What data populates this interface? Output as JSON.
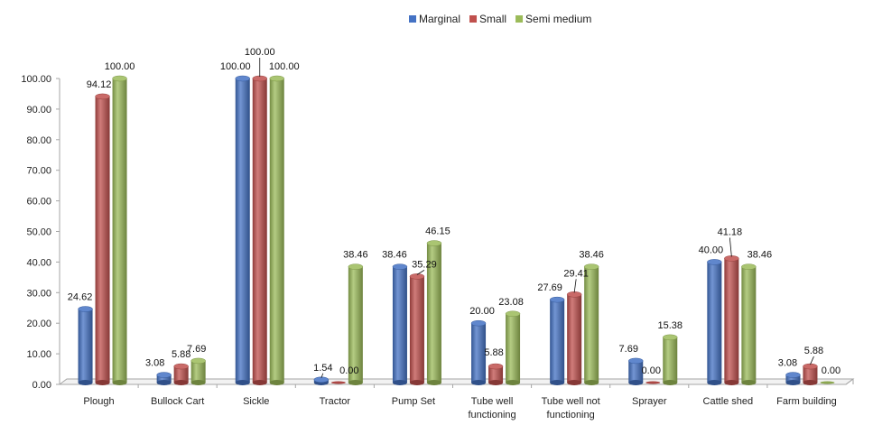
{
  "chart_data": {
    "type": "bar",
    "title": "",
    "xlabel": "",
    "ylabel": "",
    "ylim": [
      0,
      100
    ],
    "yticks": [
      "0.00",
      "10.00",
      "20.00",
      "30.00",
      "40.00",
      "50.00",
      "60.00",
      "70.00",
      "80.00",
      "90.00",
      "100.00"
    ],
    "grid": false,
    "legend_position": "top-center",
    "categories": [
      [
        "Plough"
      ],
      [
        "Bullock Cart"
      ],
      [
        "Sickle"
      ],
      [
        "Tractor"
      ],
      [
        "Pump Set"
      ],
      [
        "Tube well",
        "functioning"
      ],
      [
        "Tube well not",
        "functioning"
      ],
      [
        "Sprayer"
      ],
      [
        "Cattle shed"
      ],
      [
        "Farm building"
      ]
    ],
    "series": [
      {
        "name": "Marginal",
        "color": "#4472C4",
        "values": [
          24.62,
          3.08,
          100.0,
          1.54,
          38.46,
          20.0,
          27.69,
          7.69,
          40.0,
          3.08
        ],
        "labels": [
          "24.62",
          "3.08",
          "100.00",
          "1.54",
          "38.46",
          "20.00",
          "27.69",
          "7.69",
          "40.00",
          "3.08"
        ]
      },
      {
        "name": "Small",
        "color": "#C0504D",
        "values": [
          94.12,
          5.88,
          100.0,
          0.0,
          35.29,
          5.88,
          29.41,
          0.0,
          41.18,
          5.88
        ],
        "labels": [
          "94.12",
          "5.88",
          "100.00",
          "0.00",
          "35.29",
          "5.88",
          "29.41",
          "0.00",
          "41.18",
          "5.88"
        ]
      },
      {
        "name": "Semi medium",
        "color": "#9BBB59",
        "values": [
          100.0,
          7.69,
          100.0,
          38.46,
          46.15,
          23.08,
          38.46,
          15.38,
          38.46,
          0.0
        ],
        "labels": [
          "100.00",
          "7.69",
          "100.00",
          "38.46",
          "46.15",
          "23.08",
          "38.46",
          "15.38",
          "38.46",
          "0.00"
        ]
      }
    ]
  }
}
